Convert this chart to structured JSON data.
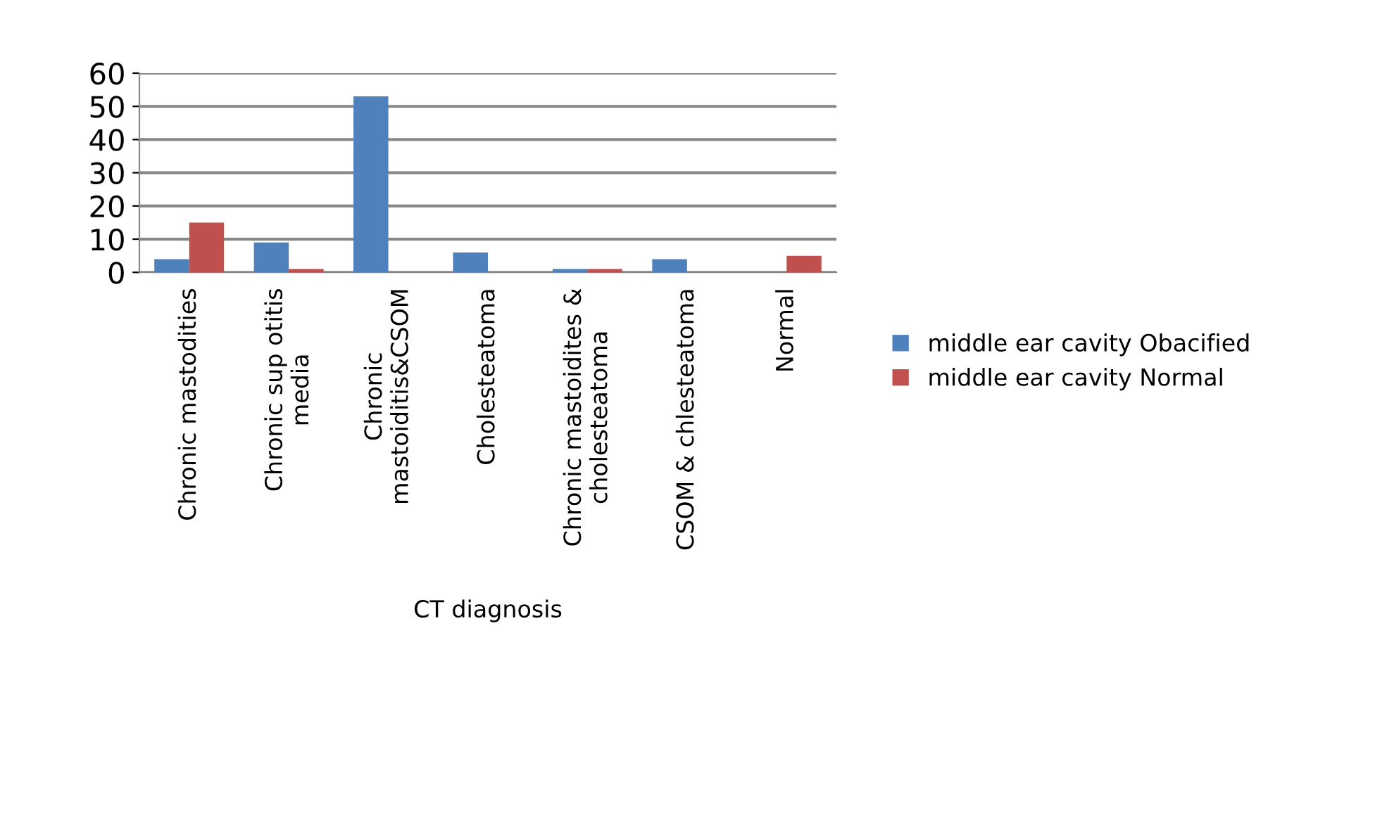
{
  "chart_data": {
    "type": "bar",
    "xlabel": "CT diagnosis",
    "categories": [
      "Chronic mastodities",
      "Chronic sup otitis\nmedia",
      "Chronic\nmastoiditis&CSOM",
      "Cholesteatoma",
      "Chronic mastoidites &\ncholesteatoma",
      "CSOM & chlesteatoma",
      "Normal"
    ],
    "series": [
      {
        "name": "middle ear cavity Obacified",
        "color": "#4f81bd",
        "values": [
          4,
          9,
          53,
          6,
          1,
          4,
          0
        ]
      },
      {
        "name": "middle ear cavity Normal",
        "color": "#c0504d",
        "values": [
          15,
          1,
          0,
          0,
          1,
          0,
          5
        ]
      }
    ],
    "ylim": [
      0,
      60
    ],
    "yticks": [
      0,
      10,
      20,
      30,
      40,
      50,
      60
    ],
    "grid": "y",
    "legend": "right"
  }
}
